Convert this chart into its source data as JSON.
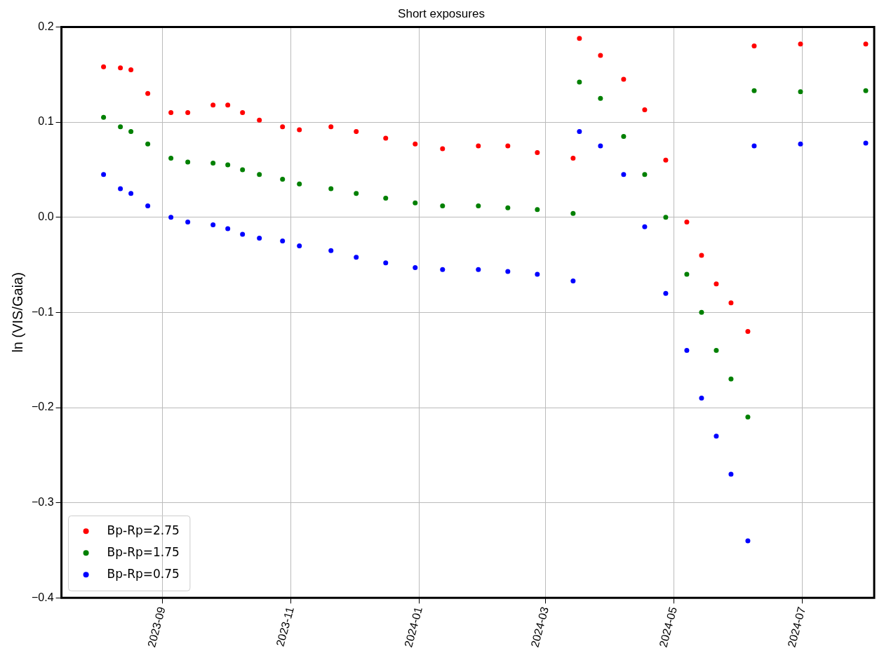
{
  "chart_data": {
    "type": "scatter",
    "title": "Short exposures",
    "ylabel": "ln (VIS/Gaia)",
    "x": [
      "2023-08-04",
      "2023-08-12",
      "2023-08-17",
      "2023-08-25",
      "2023-09-05",
      "2023-09-13",
      "2023-09-25",
      "2023-10-02",
      "2023-10-09",
      "2023-10-17",
      "2023-10-28",
      "2023-11-05",
      "2023-11-20",
      "2023-12-02",
      "2023-12-16",
      "2023-12-30",
      "2024-01-12",
      "2024-01-29",
      "2024-02-12",
      "2024-02-26",
      "2024-03-14",
      "2024-03-17",
      "2024-03-27",
      "2024-04-07",
      "2024-04-17",
      "2024-04-27",
      "2024-05-07",
      "2024-05-14",
      "2024-05-21",
      "2024-05-28",
      "2024-06-05",
      "2024-06-08",
      "2024-06-30",
      "2024-07-31"
    ],
    "series": [
      {
        "name": "Bp-Rp=2.75",
        "color": "#ff0000",
        "values": [
          0.158,
          0.157,
          0.155,
          0.13,
          0.11,
          0.11,
          0.118,
          0.118,
          0.11,
          0.102,
          0.095,
          0.092,
          0.095,
          0.09,
          0.083,
          0.077,
          0.072,
          0.075,
          0.075,
          0.068,
          0.062,
          0.188,
          0.17,
          0.145,
          0.113,
          0.06,
          -0.005,
          -0.04,
          -0.07,
          -0.09,
          -0.12,
          0.18,
          0.182,
          0.182
        ]
      },
      {
        "name": "Bp-Rp=1.75",
        "color": "#008000",
        "values": [
          0.105,
          0.095,
          0.09,
          0.077,
          0.062,
          0.058,
          0.057,
          0.055,
          0.05,
          0.045,
          0.04,
          0.035,
          0.03,
          0.025,
          0.02,
          0.015,
          0.012,
          0.012,
          0.01,
          0.008,
          0.004,
          0.142,
          0.125,
          0.085,
          0.045,
          0.0,
          -0.06,
          -0.1,
          -0.14,
          -0.17,
          -0.21,
          0.133,
          0.132,
          0.133
        ]
      },
      {
        "name": "Bp-Rp=0.75",
        "color": "#0000ff",
        "values": [
          0.045,
          0.03,
          0.025,
          0.012,
          0.0,
          -0.005,
          -0.008,
          -0.012,
          -0.018,
          -0.022,
          -0.025,
          -0.03,
          -0.035,
          -0.042,
          -0.048,
          -0.053,
          -0.055,
          -0.055,
          -0.057,
          -0.06,
          -0.067,
          0.09,
          0.075,
          0.045,
          -0.01,
          -0.08,
          -0.14,
          -0.19,
          -0.23,
          -0.27,
          -0.34,
          0.075,
          0.077,
          0.078
        ]
      }
    ],
    "xlim": [
      "2023-07-15",
      "2024-08-04"
    ],
    "xticks": [
      {
        "value": "2023-09-01",
        "label": "2023-09"
      },
      {
        "value": "2023-11-01",
        "label": "2023-11"
      },
      {
        "value": "2024-01-01",
        "label": "2024-01"
      },
      {
        "value": "2024-03-01",
        "label": "2024-03"
      },
      {
        "value": "2024-05-01",
        "label": "2024-05"
      },
      {
        "value": "2024-07-01",
        "label": "2024-07"
      }
    ],
    "ylim": [
      -0.4,
      0.2
    ],
    "yticks": [
      {
        "value": -0.4,
        "label": "−0.4"
      },
      {
        "value": -0.3,
        "label": "−0.3"
      },
      {
        "value": -0.2,
        "label": "−0.2"
      },
      {
        "value": -0.1,
        "label": "−0.1"
      },
      {
        "value": 0,
        "label": "0.0"
      },
      0.1,
      0.2
    ],
    "grid": true,
    "legend": "bottom left",
    "marker": "circle"
  }
}
